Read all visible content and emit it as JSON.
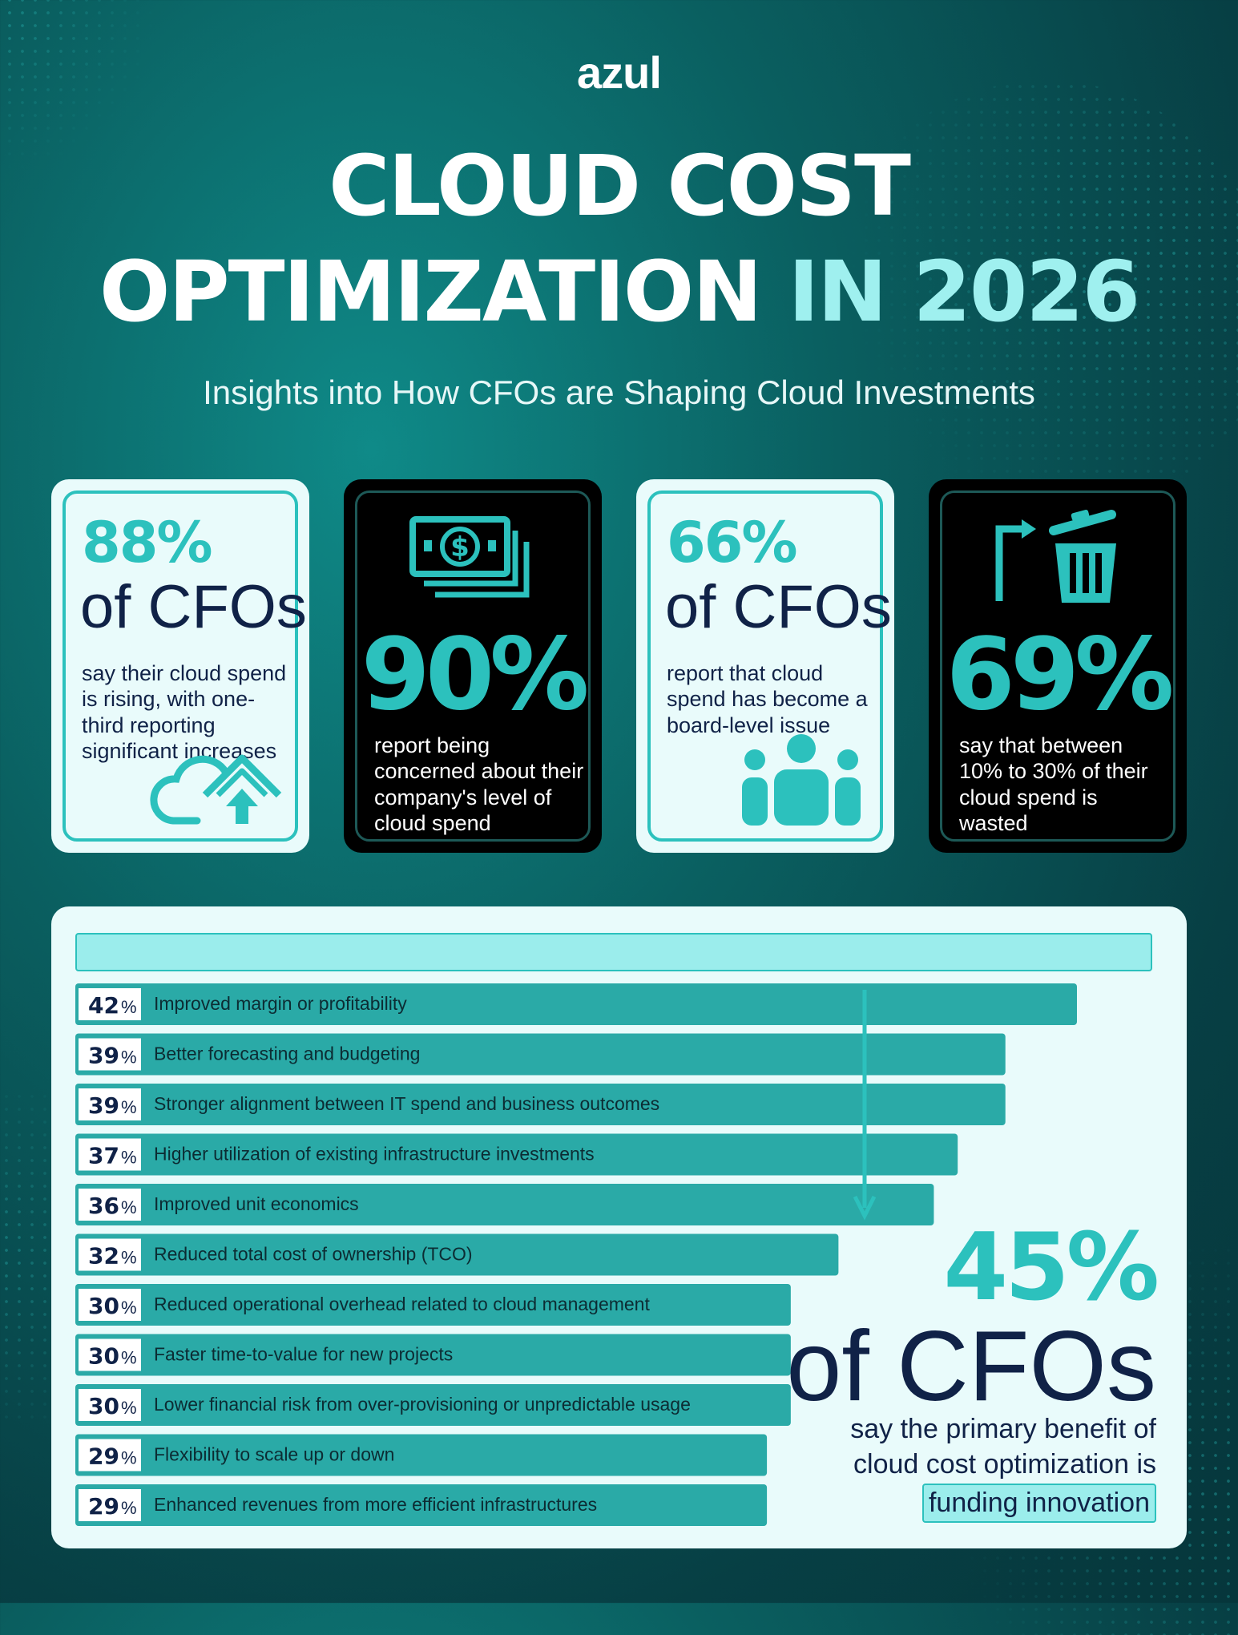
{
  "brand": "azul",
  "title": {
    "line1": "CLOUD COST",
    "line2_main": "OPTIMIZATION",
    "line2_highlight": "IN 2026"
  },
  "subtitle": "Insights into How CFOs are Shaping Cloud Investments",
  "cards": [
    {
      "pct": "88%",
      "unit": "of CFOs",
      "desc": "say their cloud spend is rising, with one-third reporting significant increases",
      "icon": "cloud-upload-icon"
    },
    {
      "pct": "90%",
      "desc": "report being concerned about their company's level of cloud spend",
      "icon": "money-stack-icon"
    },
    {
      "pct": "66%",
      "unit": "of CFOs",
      "desc": "report that cloud spend has become a board-level issue",
      "icon": "people-group-icon"
    },
    {
      "pct": "69%",
      "desc": "say that between 10% to 30% of their cloud spend is wasted",
      "icon": "trash-can-icon"
    }
  ],
  "colors": {
    "accent": "#2cc1bd",
    "navy": "#102247",
    "light_panel": "#e9fbfb",
    "highlight": "#9bedec",
    "bar": "#2aaaa7"
  },
  "chart_data": {
    "type": "bar",
    "orientation": "horizontal",
    "unit": "%",
    "categories": [
      "Improved margin or profitability",
      "Better forecasting and budgeting",
      "Stronger alignment between IT spend and business outcomes",
      "Higher utilization of existing infrastructure investments",
      "Improved unit economics",
      "Reduced total cost of ownership (TCO)",
      "Reduced operational overhead related to cloud management",
      "Faster time-to-value for new projects",
      "Lower financial risk from over-provisioning or unpredictable usage",
      "Flexibility to scale up or down",
      "Enhanced revenues from more efficient infrastructures"
    ],
    "values": [
      42,
      39,
      39,
      37,
      36,
      32,
      30,
      30,
      30,
      29,
      29
    ]
  },
  "callout": {
    "pct": "45%",
    "unit": "of CFOs",
    "desc": "say the primary benefit of cloud cost optimization is",
    "highlight": "funding innovation"
  }
}
